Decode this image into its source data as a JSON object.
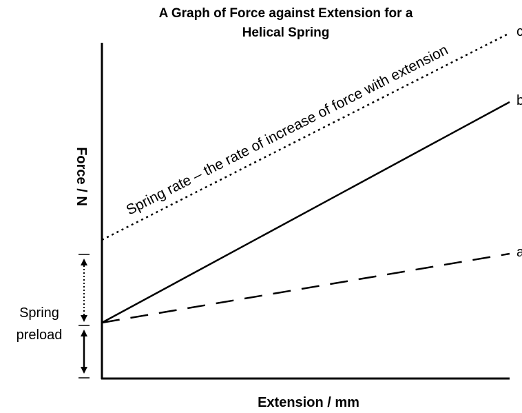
{
  "chart_data": {
    "type": "line",
    "title_lines": [
      "A Graph of Force against Extension for a",
      "Helical Spring"
    ],
    "xlabel": "Extension / mm",
    "ylabel": "Force / N",
    "xlim": [
      0,
      100
    ],
    "ylim": [
      0,
      100
    ],
    "grid": false,
    "series": [
      {
        "name": "c",
        "style": "dotted",
        "x": [
          0,
          100
        ],
        "y": [
          40,
          100
        ]
      },
      {
        "name": "b",
        "style": "solid",
        "x": [
          0,
          100
        ],
        "y": [
          16,
          80
        ]
      },
      {
        "name": "a",
        "style": "dashed",
        "x": [
          0,
          100
        ],
        "y": [
          16,
          36
        ]
      }
    ],
    "annotations": {
      "slope_text": "Spring rate – the rate of increase of force with extension",
      "preload_lines": [
        "Spring",
        "preload"
      ]
    }
  }
}
